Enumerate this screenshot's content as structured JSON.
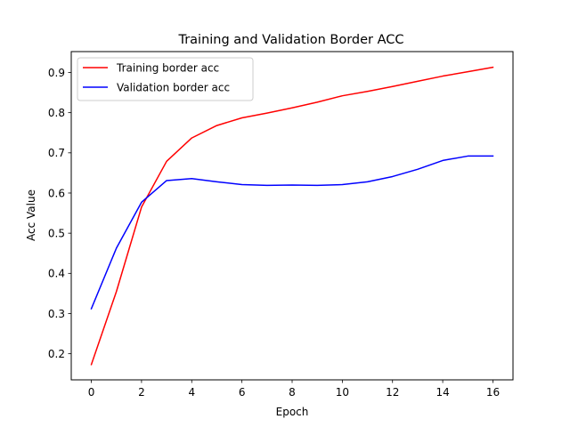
{
  "chart_data": {
    "type": "line",
    "title": "Training and Validation Border ACC",
    "xlabel": "Epoch",
    "ylabel": "Acc Value",
    "x": [
      0,
      1,
      2,
      3,
      4,
      5,
      6,
      7,
      8,
      9,
      10,
      11,
      12,
      13,
      14,
      15,
      16
    ],
    "xlim": [
      -0.8,
      16.8
    ],
    "ylim": [
      0.135,
      0.952
    ],
    "xticks": [
      0,
      2,
      4,
      6,
      8,
      10,
      12,
      14,
      16
    ],
    "xtick_labels": [
      "0",
      "2",
      "4",
      "6",
      "8",
      "10",
      "12",
      "14",
      "16"
    ],
    "yticks": [
      0.2,
      0.3,
      0.4,
      0.5,
      0.6,
      0.7,
      0.8,
      0.9
    ],
    "ytick_labels": [
      "0.2",
      "0.3",
      "0.4",
      "0.5",
      "0.6",
      "0.7",
      "0.8",
      "0.9"
    ],
    "grid": false,
    "legend_position": "top-left",
    "series": [
      {
        "name": "Training border acc",
        "color": "#ff0000",
        "values": [
          0.173,
          0.355,
          0.565,
          0.679,
          0.737,
          0.768,
          0.787,
          0.799,
          0.812,
          0.826,
          0.842,
          0.853,
          0.865,
          0.878,
          0.891,
          0.902,
          0.913
        ]
      },
      {
        "name": "Validation border acc",
        "color": "#0000ff",
        "values": [
          0.312,
          0.463,
          0.577,
          0.631,
          0.636,
          0.628,
          0.621,
          0.619,
          0.62,
          0.619,
          0.621,
          0.628,
          0.641,
          0.659,
          0.681,
          0.692,
          0.692
        ]
      }
    ]
  }
}
